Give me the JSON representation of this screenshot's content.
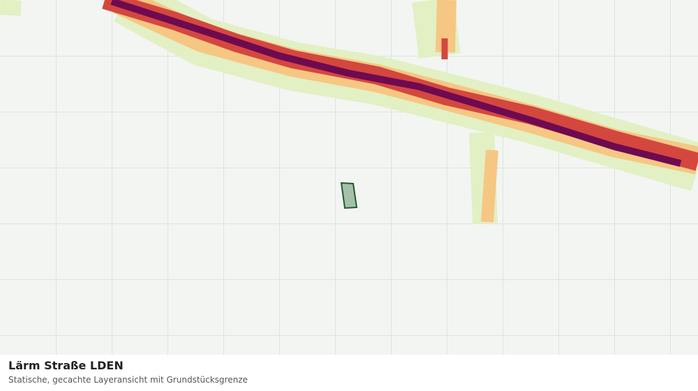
{
  "title": "Lärm Straße LDEN",
  "subtitle": "Statische, gecachte Layeransicht mit Grundstücksgrenze"
}
